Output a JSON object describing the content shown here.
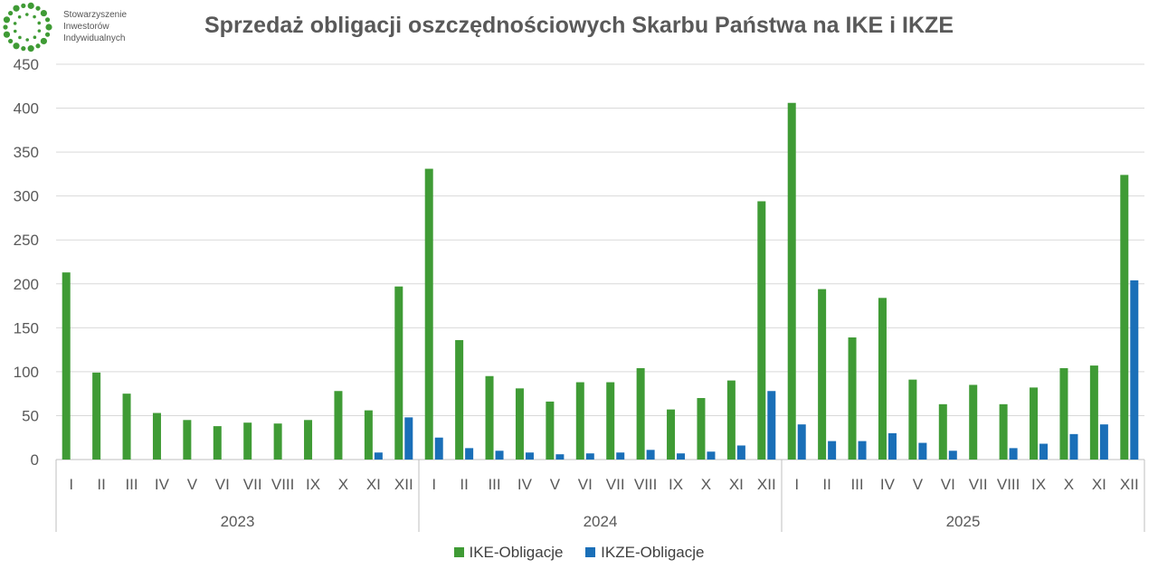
{
  "logo": {
    "name_lines": [
      "Stowarzyszenie",
      "Inwestorów",
      "Indywidualnych"
    ],
    "icon": "green-dot-ring-icon"
  },
  "colors": {
    "ike": "#3f9b35",
    "ikze": "#1a6fb8",
    "grid": "#d9d9d9",
    "axis_text": "#595959"
  },
  "chart_data": {
    "type": "bar",
    "title": "Sprzedaż obligacji oszczędnościowych Skarbu Państwa na IKE i IKZE",
    "xlabel": "",
    "ylabel": "",
    "ylim": [
      0,
      450
    ],
    "yticks": [
      0,
      50,
      100,
      150,
      200,
      250,
      300,
      350,
      400,
      450
    ],
    "grid": true,
    "legend_position": "bottom",
    "years": [
      "2023",
      "2024",
      "2025"
    ],
    "months": [
      "I",
      "II",
      "III",
      "IV",
      "V",
      "VI",
      "VII",
      "VIII",
      "IX",
      "X",
      "XI",
      "XII"
    ],
    "categories": [
      "I 2023",
      "II 2023",
      "III 2023",
      "IV 2023",
      "V 2023",
      "VI 2023",
      "VII 2023",
      "VIII 2023",
      "IX 2023",
      "X 2023",
      "XI 2023",
      "XII 2023",
      "I 2024",
      "II 2024",
      "III 2024",
      "IV 2024",
      "V 2024",
      "VI 2024",
      "VII 2024",
      "VIII 2024",
      "IX 2024",
      "X 2024",
      "XI 2024",
      "XII 2024",
      "I 2025",
      "II 2025",
      "III 2025",
      "IV 2025",
      "V 2025",
      "VI 2025",
      "VII 2025",
      "VIII 2025",
      "IX 2025",
      "X 2025",
      "XI 2025",
      "XII 2025"
    ],
    "series": [
      {
        "name": "IKE-Obligacje",
        "values": [
          213,
          99,
          75,
          53,
          45,
          38,
          42,
          41,
          45,
          78,
          56,
          197,
          331,
          136,
          95,
          81,
          66,
          88,
          88,
          104,
          57,
          70,
          90,
          294,
          406,
          194,
          139,
          184,
          91,
          63,
          85,
          63,
          82,
          104,
          107,
          324
        ]
      },
      {
        "name": "IKZE-Obligacje",
        "values": [
          0,
          0,
          0,
          0,
          0,
          0,
          0,
          0,
          0,
          0,
          8,
          48,
          25,
          13,
          10,
          8,
          6,
          7,
          8,
          11,
          7,
          9,
          16,
          78,
          40,
          21,
          21,
          30,
          19,
          10,
          0,
          13,
          18,
          29,
          40,
          204
        ]
      }
    ]
  }
}
